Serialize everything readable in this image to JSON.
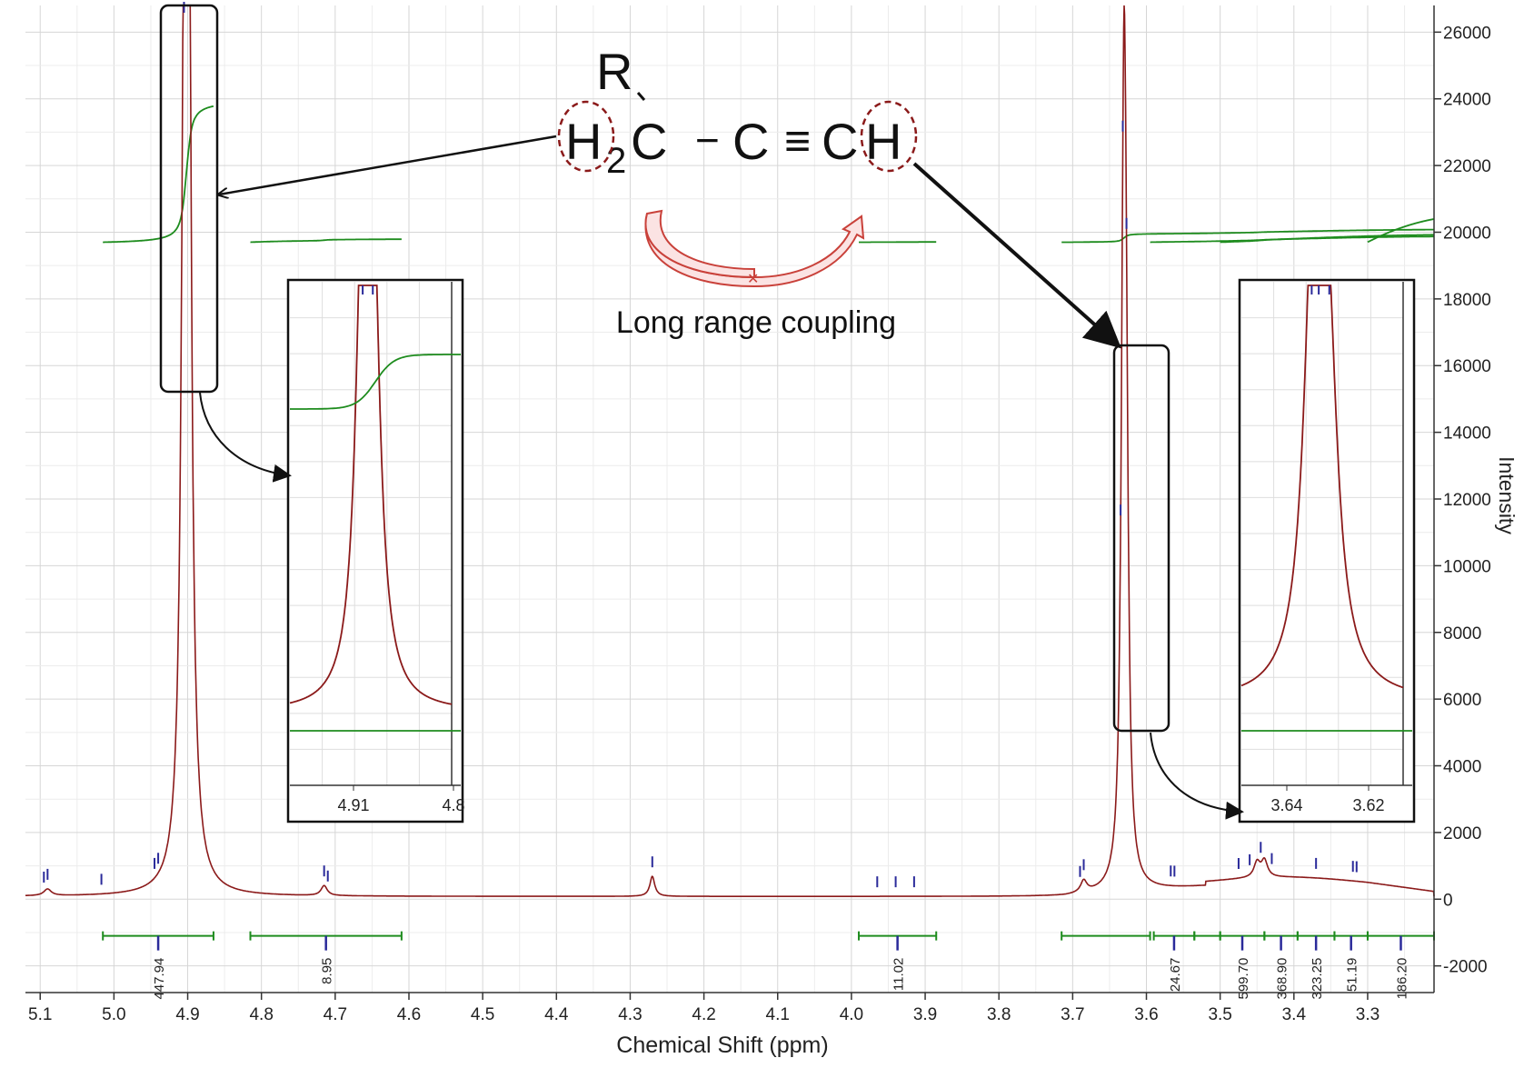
{
  "chart_data": {
    "type": "line",
    "xlabel": "Chemical Shift (ppm)",
    "ylabel": "Intensity",
    "x_reversed": true,
    "xlim": [
      5.12,
      3.21
    ],
    "ylim": [
      -2800,
      26800
    ],
    "grid": true,
    "x_ticks": [
      "5.1",
      "5.0",
      "4.9",
      "4.8",
      "4.7",
      "4.6",
      "4.5",
      "4.4",
      "4.3",
      "4.2",
      "4.1",
      "4.0",
      "3.9",
      "3.8",
      "3.7",
      "3.6",
      "3.5",
      "3.4",
      "3.3"
    ],
    "y_ticks": [
      "26000",
      "24000",
      "22000",
      "20000",
      "18000",
      "16000",
      "14000",
      "12000",
      "10000",
      "8000",
      "6000",
      "4000",
      "2000",
      "0",
      "-2000"
    ],
    "spectrum_color": "#8b1a1a",
    "integral_color": "#1e8c1e",
    "peak_marker_color": "#2a2a9a",
    "peaks": [
      {
        "ppm": 4.904,
        "height": 26000,
        "width": 0.0045
      },
      {
        "ppm": 4.899,
        "height": 26000,
        "width": 0.0045
      },
      {
        "ppm": 3.632,
        "height": 7600,
        "width": 0.0035
      },
      {
        "ppm": 3.63,
        "height": 16500,
        "width": 0.0035
      },
      {
        "ppm": 3.627,
        "height": 7600,
        "width": 0.0035
      },
      {
        "ppm": 4.27,
        "height": 600,
        "width": 0.004
      },
      {
        "ppm": 4.715,
        "height": 300,
        "width": 0.005
      },
      {
        "ppm": 3.685,
        "height": 350,
        "width": 0.005
      },
      {
        "ppm": 3.45,
        "height": 450,
        "width": 0.005
      },
      {
        "ppm": 3.44,
        "height": 500,
        "width": 0.005
      },
      {
        "ppm": 5.09,
        "height": 200,
        "width": 0.006
      }
    ],
    "peak_markers": [
      5.095,
      5.09,
      5.017,
      4.945,
      4.94,
      4.905,
      4.715,
      4.71,
      4.27,
      3.965,
      3.94,
      3.915,
      3.69,
      3.685,
      3.635,
      3.632,
      3.627,
      3.567,
      3.562,
      3.475,
      3.46,
      3.445,
      3.43,
      3.37,
      3.32,
      3.315
    ],
    "integrals": [
      {
        "from": 5.015,
        "to": 4.865,
        "value": "447.94"
      },
      {
        "from": 4.815,
        "to": 4.61,
        "value": "8.95"
      },
      {
        "from": 3.99,
        "to": 3.885,
        "value": "11.02"
      },
      {
        "from": 3.715,
        "to": 3.595,
        "value": ""
      },
      {
        "from": 3.59,
        "to": 3.535,
        "value": "24.67"
      },
      {
        "from": 3.535,
        "to": 3.5,
        "value": ""
      },
      {
        "from": 3.5,
        "to": 3.44,
        "value": "599.70"
      },
      {
        "from": 3.44,
        "to": 3.395,
        "value": "368.90"
      },
      {
        "from": 3.395,
        "to": 3.345,
        "value": "323.25"
      },
      {
        "from": 3.345,
        "to": 3.3,
        "value": "51.19"
      },
      {
        "from": 3.3,
        "to": 3.21,
        "value": "186.20"
      }
    ],
    "insets": [
      {
        "x_ticks": [
          "4.91",
          "4.8"
        ],
        "peaks_ppm": [
          4.904,
          4.899
        ]
      },
      {
        "x_ticks": [
          "3.64",
          "3.62"
        ],
        "peaks_ppm": [
          3.632,
          3.63,
          3.627
        ]
      }
    ],
    "annotations": {
      "structure": {
        "R": "R",
        "H": "H",
        "sub2": "2",
        "C1": "C",
        "dash": "−",
        "C2": "C",
        "triple": "≡",
        "C3": "C",
        "H2": "H"
      },
      "coupling_label": "Long range coupling"
    }
  }
}
